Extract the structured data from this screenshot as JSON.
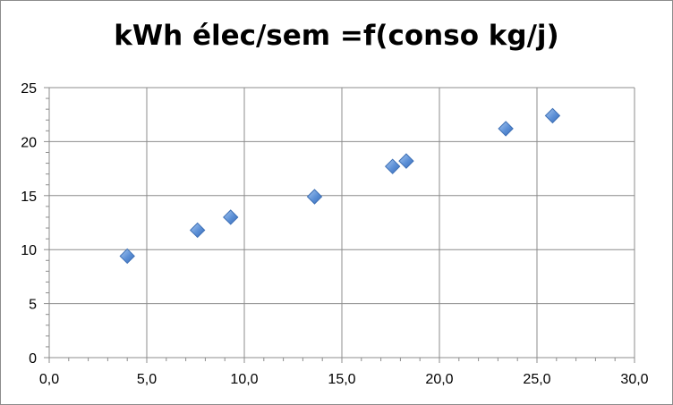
{
  "chart_data": {
    "type": "scatter",
    "title": "kWh élec/sem =f(conso kg/j)",
    "xlabel": "",
    "ylabel": "",
    "xlim": [
      0,
      30
    ],
    "ylim": [
      0,
      25
    ],
    "x_ticks": [
      0,
      5,
      10,
      15,
      20,
      25,
      30
    ],
    "y_ticks": [
      0,
      5,
      10,
      15,
      20,
      25
    ],
    "x_tick_labels": [
      "0,0",
      "5,0",
      "10,0",
      "15,0",
      "20,0",
      "25,0",
      "30,0"
    ],
    "y_tick_labels": [
      "0",
      "5",
      "10",
      "15",
      "20",
      "25"
    ],
    "grid": true,
    "marker": "diamond",
    "marker_color": "#5b8fd6",
    "points": [
      {
        "x": 4.0,
        "y": 9.4
      },
      {
        "x": 7.6,
        "y": 11.8
      },
      {
        "x": 9.3,
        "y": 13.0
      },
      {
        "x": 13.6,
        "y": 14.9
      },
      {
        "x": 17.6,
        "y": 17.7
      },
      {
        "x": 18.3,
        "y": 18.2
      },
      {
        "x": 23.4,
        "y": 21.2
      },
      {
        "x": 25.8,
        "y": 22.4
      }
    ]
  }
}
